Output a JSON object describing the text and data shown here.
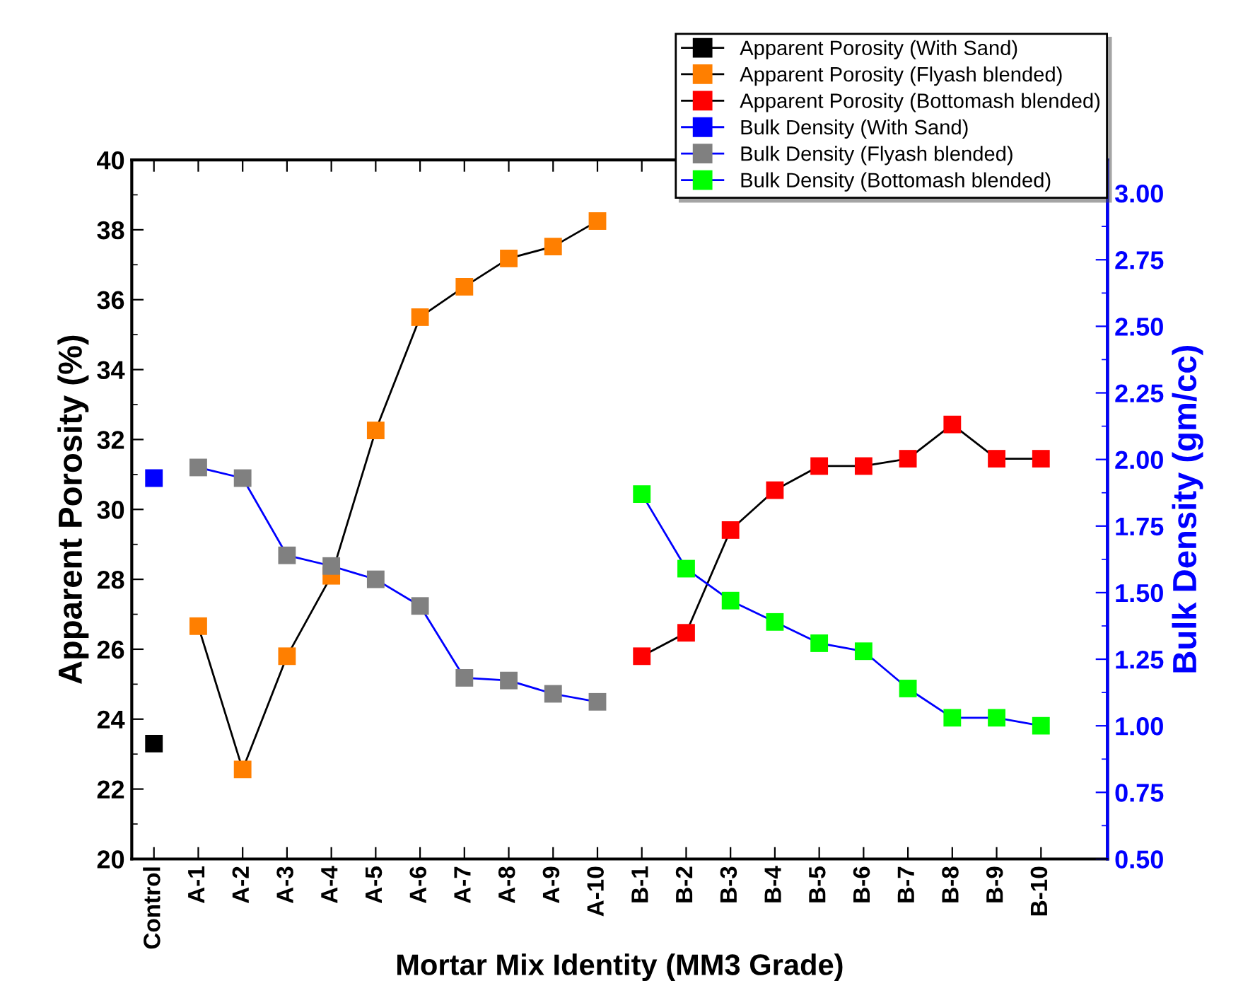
{
  "chart_data": {
    "type": "line",
    "xlabel": "Mortar Mix Identity (MM3 Grade)",
    "ylabel": "Apparent Porosity (%)",
    "y2label": "Bulk Density (gm/cc)",
    "categories": [
      "Control",
      "A-1",
      "A-2",
      "A-3",
      "A-4",
      "A-5",
      "A-6",
      "A-7",
      "A-8",
      "A-9",
      "A-10",
      "B-1",
      "B-2",
      "B-3",
      "B-4",
      "B-5",
      "B-6",
      "B-7",
      "B-8",
      "B-9",
      "B-10"
    ],
    "ylim": [
      20,
      40
    ],
    "yticks": [
      20,
      22,
      24,
      26,
      28,
      30,
      32,
      34,
      36,
      38,
      40
    ],
    "y2lim": [
      0.5,
      3.125
    ],
    "y2ticks": [
      {
        "value": 0.5,
        "label": "0.50"
      },
      {
        "value": 0.75,
        "label": "0.75"
      },
      {
        "value": 1.0,
        "label": "1.00"
      },
      {
        "value": 1.25,
        "label": "1.25"
      },
      {
        "value": 1.5,
        "label": "1.50"
      },
      {
        "value": 1.75,
        "label": "1.75"
      },
      {
        "value": 2.0,
        "label": "2.00"
      },
      {
        "value": 2.25,
        "label": "2.25"
      },
      {
        "value": 2.5,
        "label": "2.50"
      },
      {
        "value": 2.75,
        "label": "2.75"
      },
      {
        "value": 3.0,
        "label": "3.00"
      }
    ],
    "marker": "square",
    "legend": "top right",
    "grid": false,
    "series": [
      {
        "name": "Apparent Porosity (With Sand)",
        "color": "#000000",
        "values": [
          23.3,
          null,
          null,
          null,
          null,
          null,
          null,
          null,
          null,
          null,
          null,
          null,
          null,
          null,
          null,
          null,
          null,
          null,
          null,
          null,
          null
        ]
      },
      {
        "name": "Apparent Porosity (Flyash blended)",
        "color": "#ff7f00",
        "values": [
          null,
          26.66,
          22.56,
          25.8,
          28.1,
          32.26,
          35.5,
          36.37,
          37.18,
          37.52,
          38.25,
          null,
          null,
          null,
          null,
          null,
          null,
          null,
          null,
          null,
          null
        ]
      },
      {
        "name": "Apparent Porosity (Bottomash blended)",
        "color": "#ff0000",
        "values": [
          null,
          null,
          null,
          null,
          null,
          null,
          null,
          null,
          null,
          null,
          null,
          25.8,
          26.47,
          29.41,
          30.55,
          31.24,
          31.24,
          31.45,
          32.43,
          31.45,
          31.45
        ]
      },
      {
        "name": "Bulk Density (With Sand)",
        "color": "#0000ff",
        "axis": "y2",
        "values": [
          1.93,
          null,
          null,
          null,
          null,
          null,
          null,
          null,
          null,
          null,
          null,
          null,
          null,
          null,
          null,
          null,
          null,
          null,
          null,
          null,
          null
        ]
      },
      {
        "name": "Bulk Density (Flyash blended)",
        "color": "#808080",
        "axis": "y2",
        "values": [
          null,
          1.97,
          1.93,
          1.64,
          1.6,
          1.55,
          1.45,
          1.18,
          1.17,
          1.12,
          1.09,
          null,
          null,
          null,
          null,
          null,
          null,
          null,
          null,
          null,
          null
        ]
      },
      {
        "name": "Bulk Density (Bottomash blended)",
        "color": "#00ff00",
        "axis": "y2",
        "values": [
          null,
          null,
          null,
          null,
          null,
          null,
          null,
          null,
          null,
          null,
          null,
          1.87,
          1.59,
          1.47,
          1.39,
          1.31,
          1.28,
          1.14,
          1.03,
          1.03,
          1.0
        ]
      }
    ]
  }
}
